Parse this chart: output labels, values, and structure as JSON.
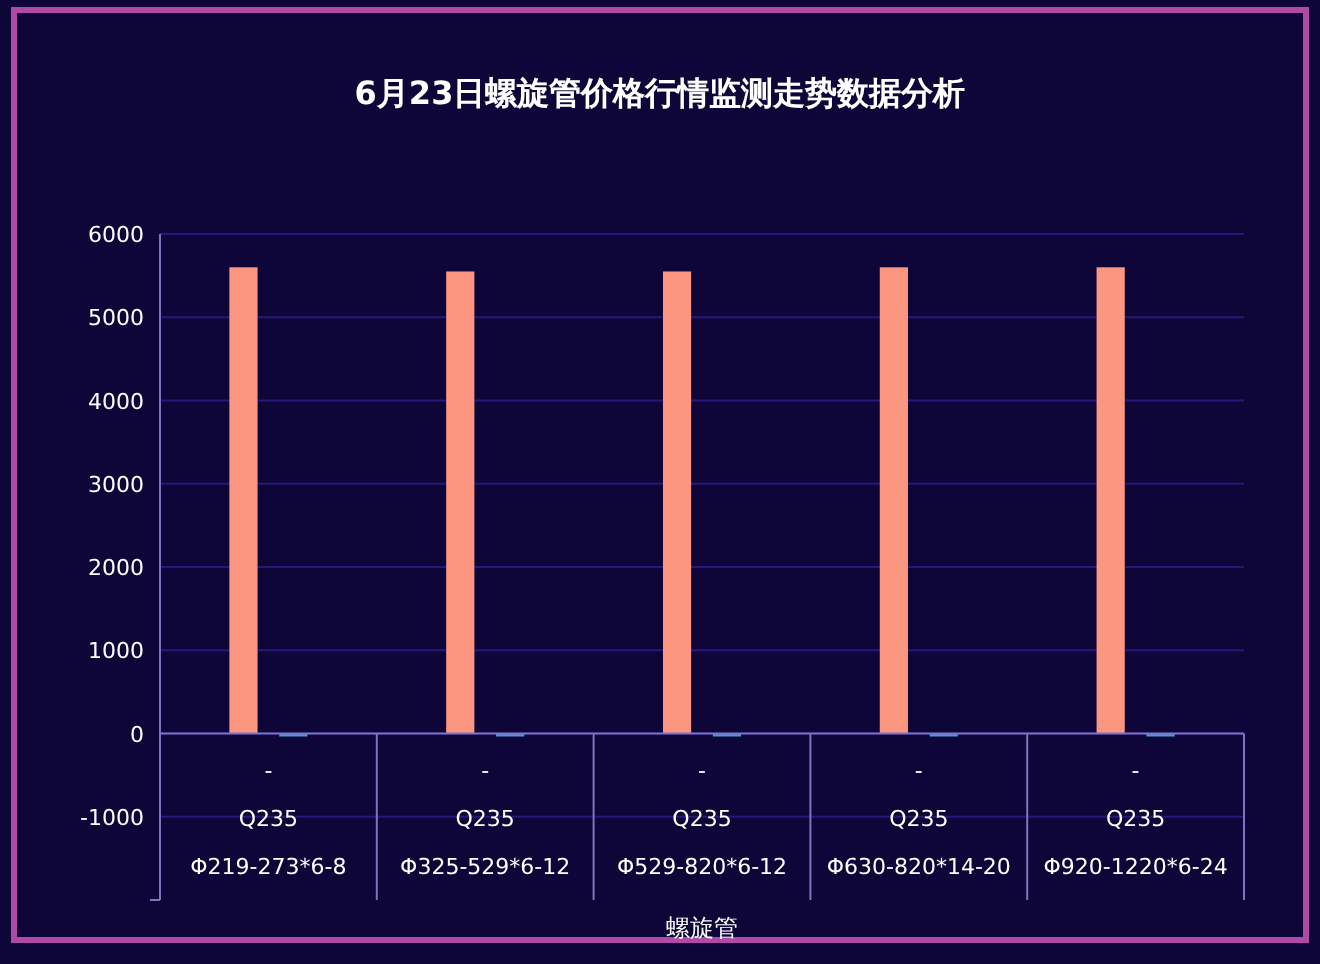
{
  "chart_data": {
    "type": "bar",
    "title": "6月23日螺旋管价格行情监测走势数据分析",
    "xlabel": "螺旋管",
    "categories": [
      "-\nQ235\nΦ219-273*6-8",
      "-\nQ235\nΦ325-529*6-12",
      "-\nQ235\nΦ529-820*6-12",
      "-\nQ235\nΦ630-820*14-20",
      "-\nQ235\nΦ920-1220*6-24"
    ],
    "series": [
      {
        "color": "#fc9680",
        "values": [
          5600,
          5550,
          5550,
          5600,
          5600
        ]
      },
      {
        "color": "#5b8fd9",
        "values": [
          0,
          0,
          0,
          0,
          0
        ]
      }
    ],
    "ylim": [
      -2000,
      6000
    ],
    "yticks": [
      -1000,
      0,
      1000,
      2000,
      3000,
      4000,
      5000,
      6000
    ],
    "grid": "y"
  }
}
